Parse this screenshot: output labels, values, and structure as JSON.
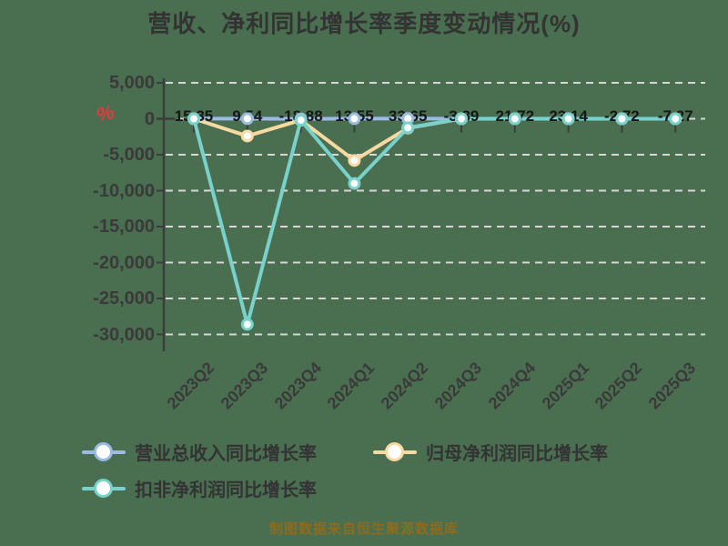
{
  "title": "营收、净利同比增长率季度变动情况(%)",
  "unit_marker": "%",
  "source_note": "制图数据来自恒生聚源数据库",
  "colors": {
    "background": "#4a6e50",
    "title": "#333333",
    "axis": "#3c3c3c",
    "grid": "#d6d6d6",
    "tick_label": "#3a3a3a",
    "data_label": "#161616",
    "unit_marker": "#e23b3b",
    "source_note": "#8d6b1f",
    "marker_fill": "#ffffff",
    "series_revenue": "#9cbbe2",
    "series_net_profit": "#f8d9a2",
    "series_deducted_profit": "#78d1cb"
  },
  "chart_data": {
    "type": "line",
    "title": "营收、净利同比增长率季度变动情况(%)",
    "categories": [
      "2023Q2",
      "2023Q3",
      "2023Q4",
      "2024Q1",
      "2024Q2",
      "2024Q3",
      "2024Q4",
      "2025Q1",
      "2025Q2",
      "2025Q3"
    ],
    "y_axis": {
      "unit": "%",
      "range": [
        -30000,
        5000
      ],
      "ticks": [
        5000,
        0,
        -5000,
        -10000,
        -15000,
        -20000,
        -25000,
        -30000
      ],
      "tick_labels": [
        "5,000",
        "0",
        "-5,000",
        "-10,000",
        "-15,000",
        "-20,000",
        "-25,000",
        "-30,000"
      ]
    },
    "grid": "horizontal-dashed",
    "legend_position": "bottom-left",
    "series": [
      {
        "name": "营业总收入同比增长率",
        "color": "#9cbbe2",
        "values": [
          15.35,
          9.54,
          -18.88,
          13.55,
          33.65,
          -3.39,
          21.72,
          23.14,
          -2.72,
          -7.27
        ],
        "labels": [
          "15.35",
          "9.54",
          "-18.88",
          "13.55",
          "33.65",
          "-3.39",
          "21.72",
          "23.14",
          "-2.72",
          "-7.27"
        ]
      },
      {
        "name": "归母净利润同比增长率",
        "color": "#f8d9a2",
        "values": [
          0,
          -2400,
          -200,
          -5800,
          -1300,
          0,
          0,
          0,
          0,
          0
        ]
      },
      {
        "name": "扣非净利润同比增长率",
        "color": "#78d1cb",
        "values": [
          0,
          -28600,
          -200,
          -9000,
          -1250,
          0,
          0,
          0,
          0,
          0
        ]
      }
    ]
  },
  "legend": {
    "items": [
      {
        "label": "营业总收入同比增长率"
      },
      {
        "label": "归母净利润同比增长率"
      },
      {
        "label": "扣非净利润同比增长率"
      }
    ]
  }
}
